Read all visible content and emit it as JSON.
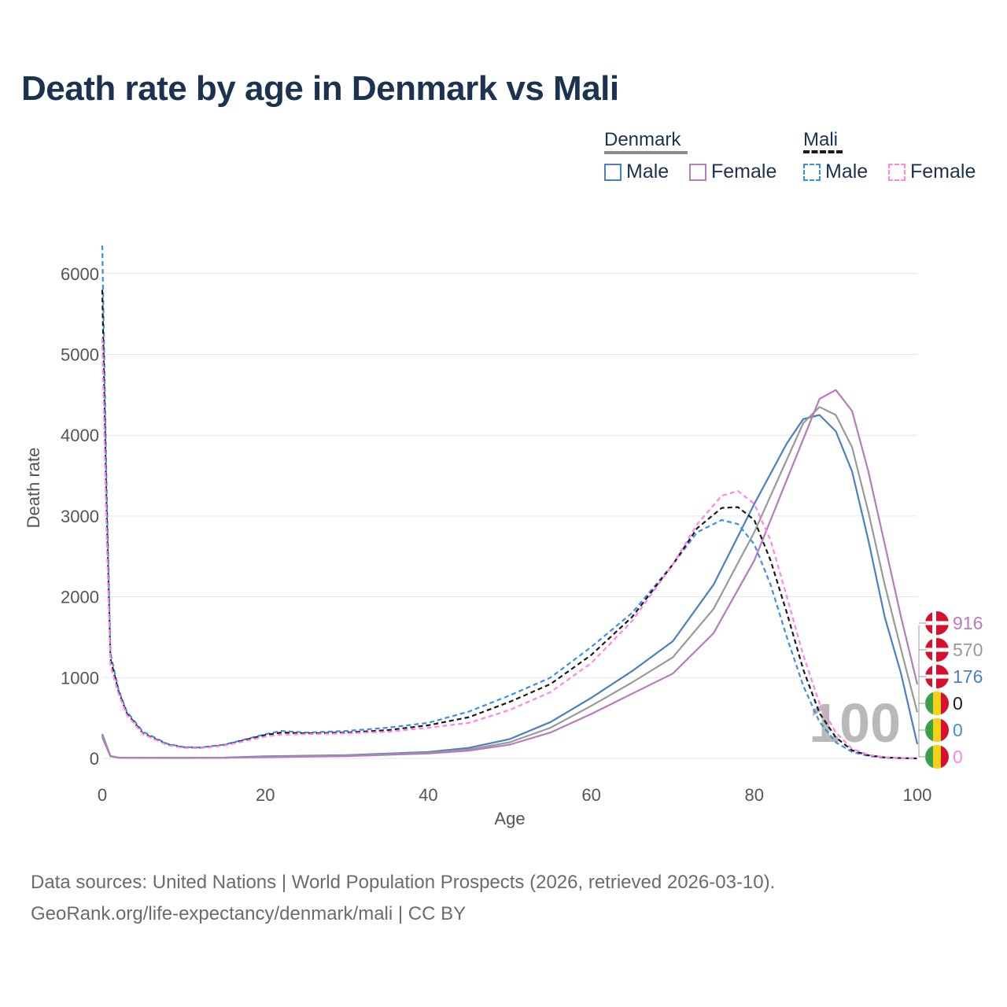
{
  "title": "Death rate by age in Denmark vs Mali",
  "legend": {
    "groups": [
      {
        "name": "Denmark",
        "style": "solid",
        "items": [
          {
            "label": "Male",
            "color": "#4a7fc1"
          },
          {
            "label": "Female",
            "color": "#b67bbd"
          }
        ]
      },
      {
        "name": "Mali",
        "style": "dashed",
        "items": [
          {
            "label": "Male",
            "color": "#3d8ee8"
          },
          {
            "label": "Female",
            "color": "#ff85e6"
          }
        ]
      }
    ]
  },
  "chart_data": {
    "type": "line",
    "xlabel": "Age",
    "ylabel": "Death rate",
    "xlim": [
      0,
      100
    ],
    "ylim": [
      0,
      6400
    ],
    "xticks": [
      0,
      20,
      40,
      60,
      80,
      100
    ],
    "yticks": [
      0,
      1000,
      2000,
      3000,
      4000,
      5000,
      6000
    ],
    "watermark": "100",
    "series": [
      {
        "name": "Denmark Male",
        "color": "#4a7fc1",
        "dash": false,
        "end_label": "176",
        "x": [
          0,
          1,
          2,
          5,
          10,
          15,
          20,
          30,
          40,
          45,
          50,
          55,
          60,
          65,
          70,
          75,
          80,
          84,
          86,
          88,
          90,
          92,
          94,
          96,
          98,
          100
        ],
        "y": [
          300,
          30,
          10,
          8,
          7,
          10,
          25,
          40,
          80,
          130,
          240,
          450,
          750,
          1080,
          1450,
          2150,
          3150,
          3900,
          4200,
          4250,
          4050,
          3550,
          2700,
          1750,
          1050,
          176
        ]
      },
      {
        "name": "Denmark Total",
        "color": "#999999",
        "dash": false,
        "end_label": "570",
        "x": [
          0,
          1,
          2,
          5,
          10,
          15,
          20,
          30,
          40,
          45,
          50,
          55,
          60,
          65,
          70,
          75,
          80,
          84,
          86,
          88,
          90,
          92,
          94,
          96,
          98,
          100
        ],
        "y": [
          280,
          28,
          9,
          7,
          6,
          9,
          20,
          35,
          70,
          110,
          200,
          380,
          650,
          940,
          1250,
          1850,
          2800,
          3700,
          4150,
          4350,
          4250,
          3850,
          3050,
          2150,
          1350,
          570
        ]
      },
      {
        "name": "Denmark Female",
        "color": "#b67bbd",
        "dash": false,
        "end_label": "916",
        "x": [
          0,
          1,
          2,
          5,
          10,
          15,
          20,
          30,
          40,
          45,
          50,
          55,
          60,
          65,
          70,
          75,
          80,
          84,
          86,
          88,
          90,
          92,
          94,
          96,
          98,
          100
        ],
        "y": [
          260,
          25,
          8,
          6,
          5,
          8,
          15,
          28,
          60,
          95,
          170,
          320,
          550,
          800,
          1050,
          1550,
          2450,
          3450,
          3950,
          4450,
          4560,
          4300,
          3550,
          2650,
          1750,
          916
        ]
      },
      {
        "name": "Mali Male",
        "color": "#3d8ee8",
        "dash": true,
        "end_label": "0",
        "x": [
          0,
          0.5,
          1,
          2,
          3,
          5,
          8,
          10,
          12,
          15,
          20,
          22,
          25,
          30,
          35,
          40,
          45,
          50,
          55,
          60,
          65,
          70,
          73,
          76,
          78,
          80,
          82,
          84,
          86,
          88,
          90,
          92,
          94,
          96,
          98,
          100
        ],
        "y": [
          6350,
          3500,
          1300,
          850,
          580,
          330,
          180,
          140,
          135,
          170,
          300,
          340,
          320,
          340,
          380,
          440,
          580,
          780,
          1000,
          1380,
          1800,
          2400,
          2800,
          2950,
          2900,
          2650,
          2150,
          1500,
          900,
          450,
          200,
          80,
          30,
          10,
          3,
          0
        ]
      },
      {
        "name": "Mali Total",
        "color": "#1a1a1a",
        "dash": true,
        "end_label": "0",
        "x": [
          0,
          0.5,
          1,
          2,
          3,
          5,
          8,
          10,
          12,
          15,
          20,
          22,
          25,
          30,
          35,
          40,
          45,
          50,
          55,
          60,
          65,
          70,
          73,
          76,
          78,
          80,
          82,
          84,
          86,
          88,
          90,
          92,
          94,
          96,
          98,
          100
        ],
        "y": [
          5800,
          3200,
          1230,
          830,
          560,
          310,
          170,
          135,
          130,
          165,
          290,
          320,
          310,
          320,
          350,
          410,
          510,
          700,
          920,
          1280,
          1750,
          2400,
          2850,
          3100,
          3110,
          2950,
          2450,
          1800,
          1100,
          560,
          260,
          100,
          38,
          12,
          4,
          0
        ]
      },
      {
        "name": "Mali Female",
        "color": "#ff85e6",
        "dash": true,
        "end_label": "0",
        "x": [
          0,
          0.5,
          1,
          2,
          3,
          5,
          8,
          10,
          12,
          15,
          20,
          22,
          25,
          30,
          35,
          40,
          45,
          50,
          55,
          60,
          65,
          70,
          73,
          76,
          78,
          80,
          82,
          84,
          86,
          88,
          90,
          92,
          94,
          96,
          98,
          100
        ],
        "y": [
          5200,
          2900,
          1150,
          800,
          540,
          300,
          165,
          130,
          128,
          160,
          270,
          295,
          300,
          310,
          330,
          380,
          440,
          600,
          820,
          1180,
          1700,
          2400,
          2900,
          3250,
          3310,
          3150,
          2700,
          2000,
          1280,
          680,
          320,
          120,
          45,
          15,
          5,
          0
        ]
      }
    ]
  },
  "source": {
    "line1": "Data sources: United Nations | World Population Prospects (2026, retrieved 2026-03-10).",
    "line2": "GeoRank.org/life-expectancy/denmark/mali | CC BY"
  }
}
